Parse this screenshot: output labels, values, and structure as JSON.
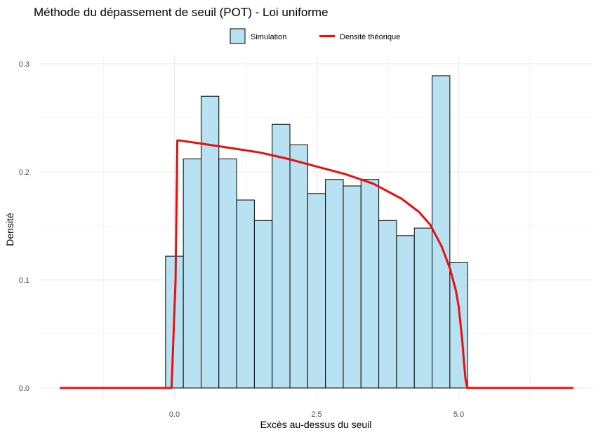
{
  "chart_data": {
    "type": "bar",
    "title": "Méthode du dépassement de seuil (POT) - Loi uniforme",
    "xlabel": "Excès au-dessus du seuil",
    "ylabel": "Densité",
    "xlim": [
      -2.0,
      7.0
    ],
    "ylim": [
      0,
      0.3
    ],
    "x_ticks": [
      0.0,
      2.5,
      5.0
    ],
    "x_tick_labels": [
      "0.0",
      "2.5",
      "5.0"
    ],
    "y_ticks": [
      0.0,
      0.1,
      0.2,
      0.3
    ],
    "y_tick_labels": [
      "0.0",
      "0.1",
      "0.2",
      "0.3"
    ],
    "grid": true,
    "legend_position": "top",
    "colors": {
      "bar_fill": "#b8e1f2",
      "bar_stroke": "#000000",
      "line": "#e8110f"
    },
    "series": [
      {
        "name": "Simulation",
        "kind": "histogram",
        "bin_width": 0.3125,
        "bins": [
          {
            "x0": -0.156,
            "x1": 0.156,
            "value": 0.122
          },
          {
            "x0": 0.156,
            "x1": 0.469,
            "value": 0.212
          },
          {
            "x0": 0.469,
            "x1": 0.781,
            "value": 0.27
          },
          {
            "x0": 0.781,
            "x1": 1.094,
            "value": 0.212
          },
          {
            "x0": 1.094,
            "x1": 1.406,
            "value": 0.174
          },
          {
            "x0": 1.406,
            "x1": 1.719,
            "value": 0.155
          },
          {
            "x0": 1.719,
            "x1": 2.031,
            "value": 0.244
          },
          {
            "x0": 2.031,
            "x1": 2.344,
            "value": 0.225
          },
          {
            "x0": 2.344,
            "x1": 2.656,
            "value": 0.18
          },
          {
            "x0": 2.656,
            "x1": 2.969,
            "value": 0.193
          },
          {
            "x0": 2.969,
            "x1": 3.281,
            "value": 0.187
          },
          {
            "x0": 3.281,
            "x1": 3.594,
            "value": 0.193
          },
          {
            "x0": 3.594,
            "x1": 3.906,
            "value": 0.155
          },
          {
            "x0": 3.906,
            "x1": 4.219,
            "value": 0.141
          },
          {
            "x0": 4.219,
            "x1": 4.531,
            "value": 0.148
          },
          {
            "x0": 4.531,
            "x1": 4.844,
            "value": 0.289
          },
          {
            "x0": 4.844,
            "x1": 5.156,
            "value": 0.116
          }
        ]
      },
      {
        "name": "Densité théorique",
        "kind": "line",
        "x": [
          -2.0,
          -0.05,
          0.02,
          0.05,
          0.1,
          0.5,
          1.0,
          1.5,
          2.0,
          2.5,
          3.0,
          3.5,
          4.0,
          4.3,
          4.5,
          4.7,
          4.85,
          4.95,
          5.0,
          5.03,
          5.06,
          5.09,
          5.12,
          5.15,
          7.0
        ],
        "y": [
          0.0,
          0.0,
          0.1,
          0.229,
          0.229,
          0.226,
          0.222,
          0.218,
          0.212,
          0.205,
          0.198,
          0.189,
          0.175,
          0.163,
          0.151,
          0.131,
          0.11,
          0.09,
          0.075,
          0.06,
          0.045,
          0.025,
          0.008,
          0.0,
          0.0
        ]
      }
    ]
  }
}
